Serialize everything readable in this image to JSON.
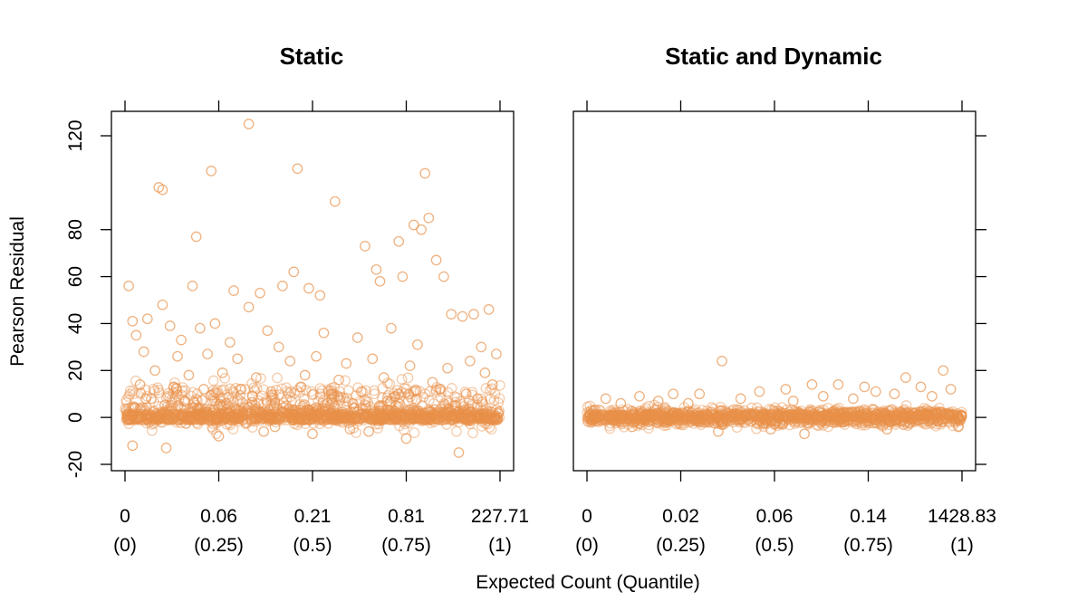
{
  "colors": {
    "points": "#e8914a",
    "axes": "#000000"
  },
  "ylabel": "Pearson Residual",
  "xlabel": "Expected Count (Quantile)",
  "chart_data": [
    {
      "type": "scatter",
      "title": "Static",
      "ylabel": "Pearson Residual",
      "xlabel": "Expected Count (Quantile)",
      "ylim": [
        -20,
        130
      ],
      "yticks": [
        -20,
        0,
        20,
        40,
        60,
        80,
        120
      ],
      "xlim": [
        -0.02,
        1.02
      ],
      "xticks": [
        {
          "q": 0,
          "value": "0",
          "quantile": "(0)"
        },
        {
          "q": 0.25,
          "value": "0.06",
          "quantile": "(0.25)"
        },
        {
          "q": 0.5,
          "value": "0.21",
          "quantile": "(0.5)"
        },
        {
          "q": 0.75,
          "value": "0.81",
          "quantile": "(0.75)"
        },
        {
          "q": 1,
          "value": "227.71",
          "quantile": "(1)"
        }
      ],
      "grid": false,
      "series": [
        {
          "x": [
            0.33,
            0.1,
            0.23,
            0.46,
            0.8,
            0.56,
            0.09,
            0.77,
            0.81,
            0.79,
            0.73,
            0.83,
            0.45,
            0.64,
            0.19,
            0.42,
            0.67,
            0.74,
            0.85,
            0.49,
            0.18,
            0.36,
            0.01,
            0.29,
            0.68,
            0.52,
            0.02,
            0.33,
            0.1,
            0.9,
            0.97,
            0.87,
            0.12,
            0.2,
            0.24,
            0.06,
            0.38,
            0.53,
            0.71,
            0.93,
            0.03,
            0.15,
            0.28,
            0.41,
            0.62,
            0.78,
            0.95,
            0.05,
            0.14,
            0.22,
            0.3,
            0.44,
            0.51,
            0.59,
            0.66,
            0.76,
            0.86,
            0.92,
            0.99,
            0.08,
            0.17,
            0.26,
            0.35,
            0.48,
            0.57,
            0.69,
            0.82,
            0.96,
            0.04,
            0.13,
            0.21,
            0.31,
            0.39,
            0.47,
            0.55,
            0.63,
            0.72,
            0.84,
            0.91,
            0.98,
            0.07,
            0.16,
            0.27,
            0.34,
            0.43,
            0.54,
            0.61,
            0.7,
            0.88,
            0.94,
            0.11,
            0.25,
            0.37,
            0.5,
            0.6,
            0.75,
            0.89,
            0.02,
            0.4,
            0.65
          ],
          "y": [
            125,
            97,
            105,
            106,
            104,
            92,
            98,
            82,
            85,
            80,
            75,
            67,
            62,
            73,
            77,
            56,
            63,
            60,
            60,
            55,
            56,
            53,
            56,
            54,
            58,
            52,
            41,
            47,
            48,
            43,
            46,
            44,
            39,
            38,
            40,
            42,
            37,
            36,
            38,
            44,
            35,
            33,
            32,
            30,
            34,
            31,
            30,
            28,
            26,
            27,
            25,
            24,
            26,
            23,
            25,
            22,
            21,
            24,
            27,
            20,
            18,
            19,
            17,
            18,
            16,
            17,
            15,
            19,
            14,
            13,
            12,
            12,
            11,
            13,
            10,
            11,
            9,
            12,
            10,
            14,
            8,
            7,
            6,
            9,
            5,
            6,
            4,
            7,
            5,
            8,
            -13,
            -8,
            -6,
            -7,
            -5,
            -9,
            -15,
            -12,
            -4,
            -6
          ]
        }
      ]
    },
    {
      "type": "scatter",
      "title": "Static and Dynamic",
      "ylabel": "Pearson Residual",
      "xlabel": "Expected Count (Quantile)",
      "ylim": [
        -20,
        130
      ],
      "yticks": [
        -20,
        0,
        20,
        40,
        60,
        80,
        120
      ],
      "xlim": [
        -0.02,
        1.02
      ],
      "xticks": [
        {
          "q": 0,
          "value": "0",
          "quantile": "(0)"
        },
        {
          "q": 0.25,
          "value": "0.02",
          "quantile": "(0.25)"
        },
        {
          "q": 0.5,
          "value": "0.06",
          "quantile": "(0.5)"
        },
        {
          "q": 0.75,
          "value": "0.14",
          "quantile": "(0.75)"
        },
        {
          "q": 1,
          "value": "1428.83",
          "quantile": "(1)"
        }
      ],
      "grid": false,
      "series": [
        {
          "x": [
            0.36,
            0.95,
            0.85,
            0.6,
            0.67,
            0.74,
            0.89,
            0.53,
            0.46,
            0.3,
            0.23,
            0.14,
            0.05,
            0.77,
            0.97,
            0.41,
            0.19,
            0.63,
            0.82,
            0.09,
            0.55,
            0.27,
            0.71,
            0.92,
            0.35,
            0.49,
            0.12,
            0.58,
            0.8,
            0.99
          ],
          "y": [
            24,
            20,
            17,
            14,
            14,
            13,
            13,
            12,
            11,
            10,
            10,
            9,
            8,
            11,
            12,
            8,
            7,
            9,
            10,
            6,
            7,
            6,
            8,
            9,
            -6,
            -5,
            -4,
            -7,
            -5,
            -4
          ]
        }
      ]
    }
  ]
}
